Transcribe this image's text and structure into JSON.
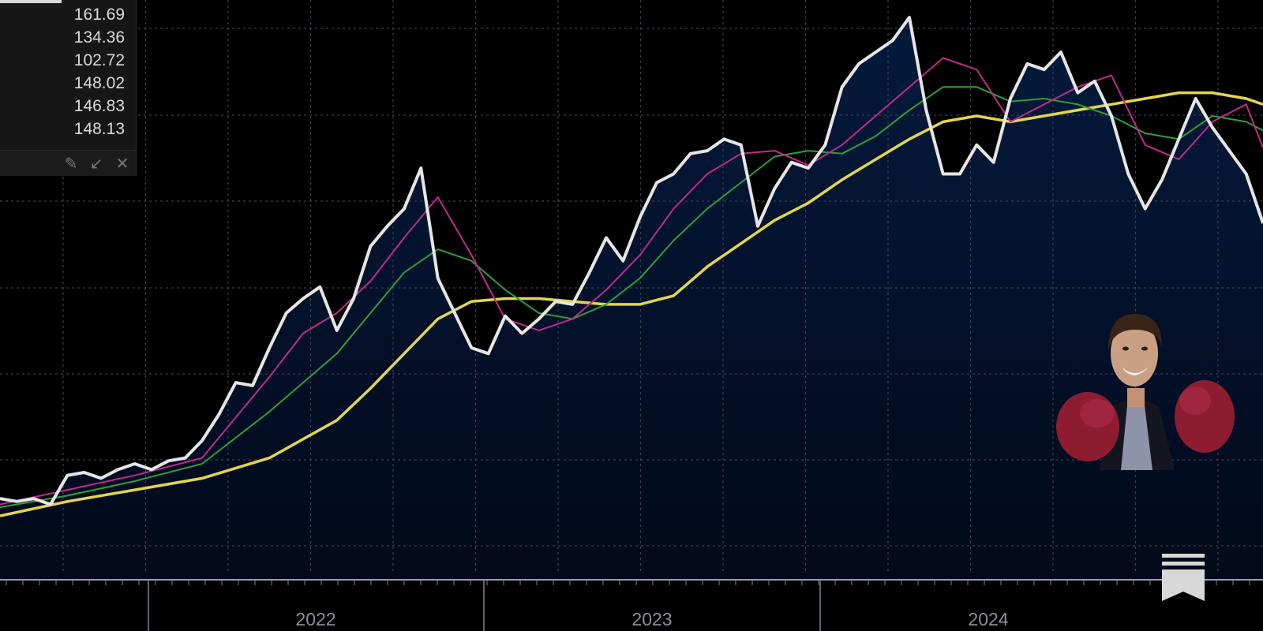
{
  "legend": {
    "values": [
      "161.69",
      "134.36",
      "102.72",
      "148.02",
      "146.83",
      "148.13"
    ],
    "tools": [
      {
        "name": "pin-icon",
        "glyph": "✎"
      },
      {
        "name": "collapse-icon",
        "glyph": "↙"
      },
      {
        "name": "close-icon",
        "glyph": "✕"
      }
    ]
  },
  "colors": {
    "price": "#e6e6e6",
    "ma_short": "#c02a8c",
    "ma_mid": "#2f9e3a",
    "ma_long": "#e4d64a",
    "area": "#041634"
  },
  "chart_data": {
    "type": "line",
    "x_ticks": [
      "2022",
      "2023",
      "2024"
    ],
    "grid": true,
    "series": [
      {
        "key": "price",
        "x": [
          2021.0,
          2021.05,
          2021.1,
          2021.15,
          2021.2,
          2021.25,
          2021.3,
          2021.35,
          2021.4,
          2021.45,
          2021.5,
          2021.55,
          2021.6,
          2021.65,
          2021.7,
          2021.75,
          2021.8,
          2021.85,
          2021.9,
          2021.95,
          2022.0,
          2022.05,
          2022.1,
          2022.15,
          2022.2,
          2022.25,
          2022.3,
          2022.35,
          2022.4,
          2022.45,
          2022.5,
          2022.55,
          2022.6,
          2022.65,
          2022.7,
          2022.75,
          2022.8,
          2022.85,
          2022.9,
          2022.95,
          2023.0,
          2023.05,
          2023.1,
          2023.15,
          2023.2,
          2023.25,
          2023.3,
          2023.35,
          2023.4,
          2023.45,
          2023.5,
          2023.55,
          2023.6,
          2023.65,
          2023.7,
          2023.75,
          2023.8,
          2023.85,
          2023.9,
          2023.95,
          2024.0,
          2024.05,
          2024.1,
          2024.15,
          2024.2,
          2024.25,
          2024.3,
          2024.35,
          2024.4,
          2024.45,
          2024.5,
          2024.55,
          2024.6,
          2024.65,
          2024.7,
          2024.75
        ],
        "y": [
          28,
          27,
          28,
          26,
          36,
          37,
          35,
          38,
          40,
          38,
          41,
          42,
          48,
          57,
          68,
          67,
          80,
          92,
          97,
          101,
          86,
          97,
          115,
          122,
          128,
          142,
          104,
          92,
          80,
          78,
          91,
          85,
          90,
          96,
          95,
          106,
          118,
          110,
          125,
          137,
          140,
          147,
          148,
          152,
          150,
          122,
          135,
          144,
          142,
          150,
          170,
          178,
          182,
          186,
          194,
          162,
          140,
          140,
          150,
          144,
          166,
          178,
          176,
          182,
          168,
          172,
          160,
          140,
          128,
          138,
          152,
          166,
          156,
          148,
          140,
          123
        ]
      },
      {
        "key": "ma_short",
        "x": [
          2021.0,
          2021.2,
          2021.4,
          2021.6,
          2021.8,
          2021.9,
          2022.0,
          2022.1,
          2022.2,
          2022.3,
          2022.4,
          2022.5,
          2022.6,
          2022.7,
          2022.8,
          2022.9,
          2023.0,
          2023.1,
          2023.2,
          2023.3,
          2023.4,
          2023.5,
          2023.6,
          2023.7,
          2023.8,
          2023.9,
          2024.0,
          2024.1,
          2024.2,
          2024.3,
          2024.4,
          2024.5,
          2024.6,
          2024.7,
          2024.75
        ],
        "y": [
          26,
          31,
          36,
          42,
          70,
          85,
          92,
          103,
          118,
          132,
          112,
          90,
          86,
          90,
          100,
          112,
          128,
          140,
          147,
          148,
          143,
          150,
          160,
          170,
          180,
          176,
          158,
          164,
          170,
          174,
          150,
          145,
          158,
          164,
          149
        ]
      },
      {
        "key": "ma_mid",
        "x": [
          2021.0,
          2021.2,
          2021.4,
          2021.6,
          2021.8,
          2022.0,
          2022.1,
          2022.2,
          2022.3,
          2022.4,
          2022.5,
          2022.6,
          2022.7,
          2022.8,
          2022.9,
          2023.0,
          2023.1,
          2023.2,
          2023.3,
          2023.4,
          2023.5,
          2023.6,
          2023.7,
          2023.8,
          2023.9,
          2024.0,
          2024.1,
          2024.2,
          2024.3,
          2024.4,
          2024.5,
          2024.6,
          2024.7,
          2024.75
        ],
        "y": [
          25,
          29,
          34,
          40,
          58,
          78,
          92,
          106,
          114,
          110,
          100,
          92,
          90,
          95,
          104,
          117,
          128,
          137,
          146,
          148,
          147,
          153,
          162,
          170,
          170,
          165,
          166,
          164,
          160,
          154,
          152,
          160,
          158,
          155
        ]
      },
      {
        "key": "ma_long",
        "x": [
          2021.0,
          2021.2,
          2021.4,
          2021.6,
          2021.8,
          2022.0,
          2022.1,
          2022.2,
          2022.3,
          2022.4,
          2022.5,
          2022.6,
          2022.7,
          2022.8,
          2022.9,
          2023.0,
          2023.1,
          2023.2,
          2023.3,
          2023.4,
          2023.5,
          2023.6,
          2023.7,
          2023.8,
          2023.9,
          2024.0,
          2024.1,
          2024.2,
          2024.3,
          2024.4,
          2024.5,
          2024.6,
          2024.7,
          2024.75
        ],
        "y": [
          22,
          27,
          31,
          35,
          42,
          55,
          66,
          78,
          90,
          96,
          97,
          97,
          96,
          95,
          95,
          98,
          108,
          116,
          124,
          130,
          138,
          145,
          152,
          158,
          160,
          158,
          160,
          162,
          164,
          166,
          168,
          168,
          166,
          164
        ]
      }
    ]
  }
}
